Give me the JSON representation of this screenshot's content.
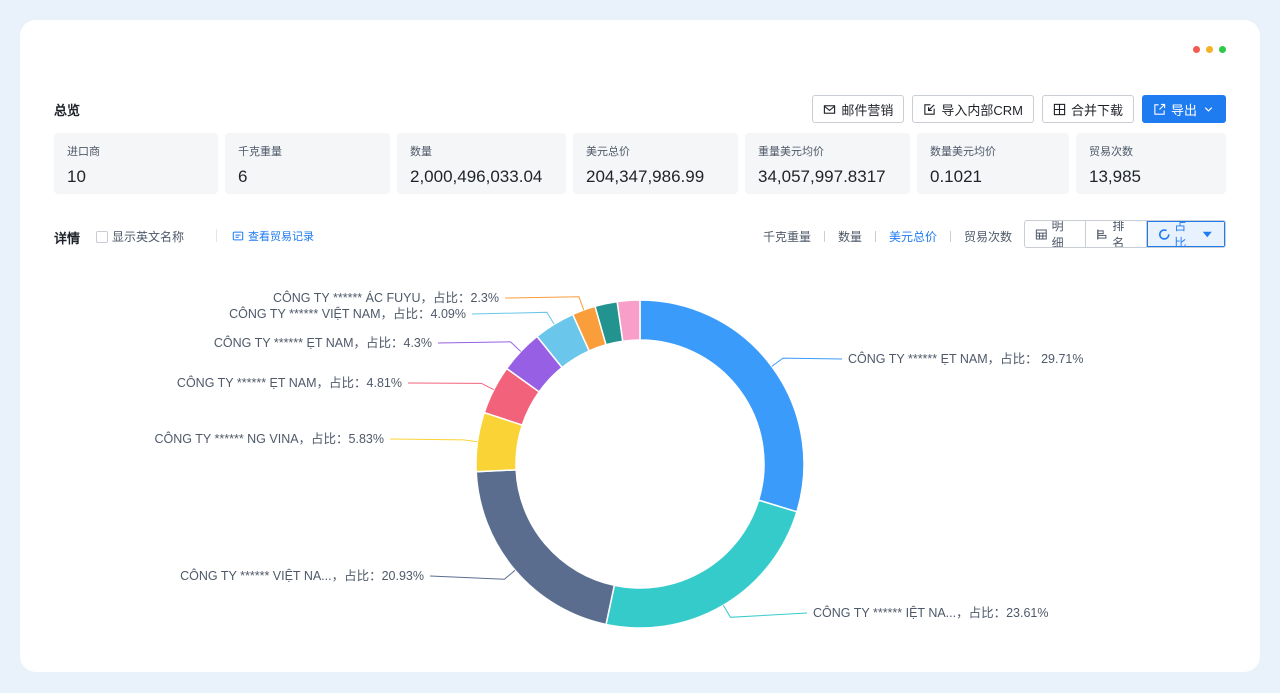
{
  "window": {
    "controls": [
      {
        "name": "close",
        "color": "#f15b50"
      },
      {
        "name": "minimize",
        "color": "#f6b124"
      },
      {
        "name": "maximize",
        "color": "#2fc84b"
      }
    ]
  },
  "overview": {
    "title": "总览",
    "actions": [
      {
        "label": "邮件营销",
        "icon": "mail-icon"
      },
      {
        "label": "导入内部CRM",
        "icon": "import-icon"
      },
      {
        "label": "合并下载",
        "icon": "merge-download-icon"
      },
      {
        "label": "导出",
        "icon": "export-icon",
        "dropdown_icon": "chevron-down-icon"
      }
    ],
    "stats": [
      {
        "label": "进口商",
        "value": "10"
      },
      {
        "label": "千克重量",
        "value": "6"
      },
      {
        "label": "数量",
        "value": "2,000,496,033.04"
      },
      {
        "label": "美元总价",
        "value": "204,347,986.99"
      },
      {
        "label": "重量美元均价",
        "value": "34,057,997.8317"
      },
      {
        "label": "数量美元均价",
        "value": "0.1021"
      },
      {
        "label": "贸易次数",
        "value": "13,985"
      }
    ]
  },
  "detail": {
    "title": "详情",
    "show_english_label": "显示英文名称",
    "show_english_checked": false,
    "trade_records_link": "查看贸易记录",
    "metric_tabs": [
      "千克重量",
      "数量",
      "美元总价",
      "贸易次数"
    ],
    "active_metric": "美元总价",
    "view_modes": [
      {
        "label": "明细",
        "icon": "table-icon"
      },
      {
        "label": "排名",
        "icon": "rank-icon"
      },
      {
        "label": "占比",
        "icon": "donut-icon",
        "active": true
      }
    ]
  },
  "chart_data": {
    "type": "pie",
    "variant": "donut",
    "unit": "%",
    "slices": [
      {
        "label": "CÔNG TY  ****** ẸT NAM，占比： 29.71%",
        "value": 29.71,
        "color": "#3a9bfb"
      },
      {
        "label": "CÔNG TY  ****** IỆT NA...，占比：23.61%",
        "value": 23.61,
        "color": "#36cbcb"
      },
      {
        "label": "CÔNG TY   ******   VIỆT NA...，占比：20.93%",
        "value": 20.93,
        "color": "#5a6d8f"
      },
      {
        "label": "CÔNG TY ****** NG VINA，占比：5.83%",
        "value": 5.83,
        "color": "#fad337"
      },
      {
        "label": "CÔNG TY ****** ẸT NAM，占比：4.81%",
        "value": 4.81,
        "color": "#f2637b"
      },
      {
        "label": "CÔNG TY  ****** ẸT NAM，占比：4.3%",
        "value": 4.3,
        "color": "#975fe4"
      },
      {
        "label": "CÔNG TY  ****** VIỆT NAM，占比：4.09%",
        "value": 4.09,
        "color": "#6ac6ea"
      },
      {
        "label": "CÔNG TY ****** ÁC FUYU，占比：2.3%",
        "value": 2.3,
        "color": "#fa9d3b"
      },
      {
        "label": "",
        "value": 2.2,
        "color": "#22938f"
      },
      {
        "label": "",
        "value": 2.22,
        "color": "#f79fc9"
      }
    ]
  }
}
